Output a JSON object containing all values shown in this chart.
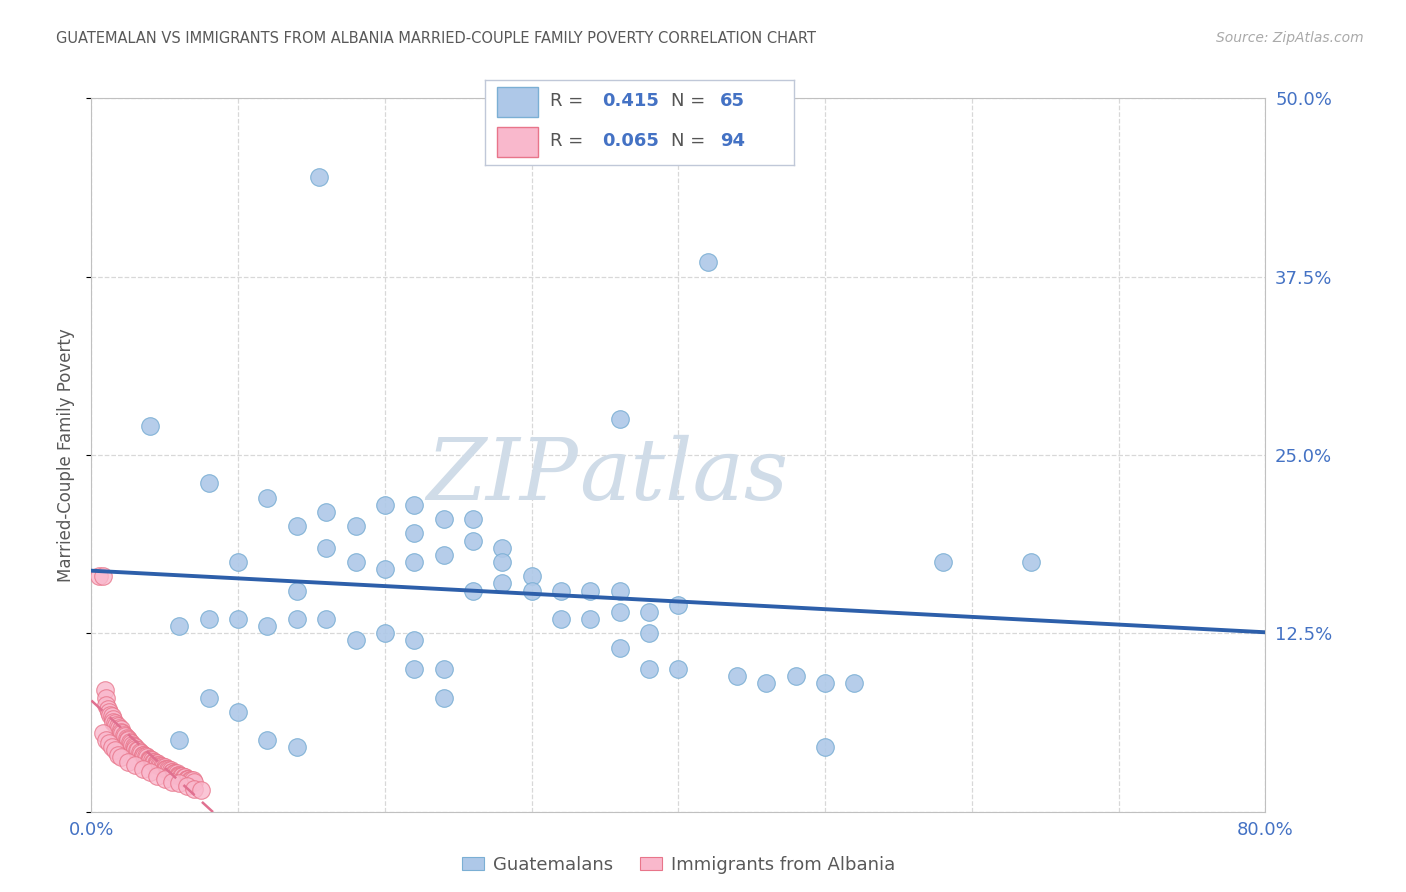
{
  "title": "GUATEMALAN VS IMMIGRANTS FROM ALBANIA MARRIED-COUPLE FAMILY POVERTY CORRELATION CHART",
  "source": "Source: ZipAtlas.com",
  "ylabel_label": "Married-Couple Family Poverty",
  "legend_blue_label": "Guatemalans",
  "legend_pink_label": "Immigrants from Albania",
  "R_blue": "0.415",
  "N_blue": "65",
  "R_pink": "0.065",
  "N_pink": "94",
  "watermark_text": "ZIPatlas",
  "title_color": "#595959",
  "source_color": "#aaaaaa",
  "axis_tick_color": "#4472c4",
  "ylabel_color": "#595959",
  "blue_scatter_face": "#aec8e8",
  "blue_scatter_edge": "#7bafd4",
  "pink_scatter_face": "#f9b8cc",
  "pink_scatter_edge": "#e8758a",
  "blue_line_color": "#2d5faa",
  "pink_line_color": "#e07090",
  "watermark_color": "#d0dce8",
  "grid_color": "#d8d8d8",
  "legend_box_color": "#e8eef8",
  "legend_border_color": "#c0c8d8",
  "xmin": 0.0,
  "xmax": 0.8,
  "ymin": 0.0,
  "ymax": 0.5,
  "xticks": [
    0.0,
    0.1,
    0.2,
    0.3,
    0.4,
    0.5,
    0.6,
    0.7,
    0.8
  ],
  "yticks": [
    0.0,
    0.125,
    0.25,
    0.375,
    0.5
  ],
  "xtick_labels": [
    "0.0%",
    "",
    "",
    "",
    "",
    "",
    "",
    "",
    "80.0%"
  ],
  "ytick_labels": [
    "",
    "12.5%",
    "25.0%",
    "37.5%",
    "50.0%"
  ],
  "blue_x": [
    0.155,
    0.42,
    0.08,
    0.1,
    0.12,
    0.14,
    0.16,
    0.18,
    0.2,
    0.18,
    0.22,
    0.14,
    0.16,
    0.2,
    0.24,
    0.22,
    0.26,
    0.22,
    0.24,
    0.26,
    0.28,
    0.3,
    0.28,
    0.32,
    0.3,
    0.26,
    0.28,
    0.34,
    0.36,
    0.38,
    0.4,
    0.36,
    0.32,
    0.34,
    0.38,
    0.06,
    0.08,
    0.1,
    0.12,
    0.14,
    0.16,
    0.18,
    0.2,
    0.22,
    0.24,
    0.36,
    0.38,
    0.4,
    0.44,
    0.46,
    0.48,
    0.5,
    0.52,
    0.58,
    0.64,
    0.22,
    0.24,
    0.08,
    0.1,
    0.12,
    0.14,
    0.06,
    0.5,
    0.36,
    0.04
  ],
  "blue_y": [
    0.445,
    0.385,
    0.23,
    0.175,
    0.22,
    0.2,
    0.21,
    0.2,
    0.215,
    0.175,
    0.215,
    0.155,
    0.185,
    0.17,
    0.205,
    0.175,
    0.205,
    0.195,
    0.18,
    0.19,
    0.185,
    0.165,
    0.175,
    0.155,
    0.155,
    0.155,
    0.16,
    0.155,
    0.155,
    0.125,
    0.145,
    0.14,
    0.135,
    0.135,
    0.14,
    0.13,
    0.135,
    0.135,
    0.13,
    0.135,
    0.135,
    0.12,
    0.125,
    0.12,
    0.1,
    0.115,
    0.1,
    0.1,
    0.095,
    0.09,
    0.095,
    0.09,
    0.09,
    0.175,
    0.175,
    0.1,
    0.08,
    0.08,
    0.07,
    0.05,
    0.045,
    0.05,
    0.045,
    0.275,
    0.27
  ],
  "pink_x": [
    0.005,
    0.008,
    0.009,
    0.01,
    0.01,
    0.011,
    0.012,
    0.013,
    0.014,
    0.015,
    0.015,
    0.016,
    0.017,
    0.018,
    0.019,
    0.02,
    0.02,
    0.021,
    0.022,
    0.023,
    0.024,
    0.025,
    0.025,
    0.026,
    0.027,
    0.028,
    0.029,
    0.03,
    0.03,
    0.031,
    0.032,
    0.033,
    0.034,
    0.035,
    0.035,
    0.036,
    0.037,
    0.038,
    0.039,
    0.04,
    0.04,
    0.041,
    0.042,
    0.043,
    0.044,
    0.045,
    0.045,
    0.046,
    0.047,
    0.048,
    0.049,
    0.05,
    0.05,
    0.051,
    0.052,
    0.053,
    0.054,
    0.055,
    0.055,
    0.056,
    0.057,
    0.058,
    0.059,
    0.06,
    0.06,
    0.061,
    0.062,
    0.063,
    0.064,
    0.065,
    0.065,
    0.066,
    0.067,
    0.068,
    0.069,
    0.07,
    0.008,
    0.01,
    0.012,
    0.014,
    0.016,
    0.018,
    0.02,
    0.025,
    0.03,
    0.035,
    0.04,
    0.045,
    0.05,
    0.055,
    0.06,
    0.065,
    0.07,
    0.075
  ],
  "pink_y": [
    0.165,
    0.165,
    0.085,
    0.08,
    0.075,
    0.072,
    0.07,
    0.068,
    0.067,
    0.065,
    0.063,
    0.062,
    0.061,
    0.06,
    0.059,
    0.058,
    0.056,
    0.055,
    0.054,
    0.053,
    0.052,
    0.051,
    0.05,
    0.049,
    0.048,
    0.047,
    0.046,
    0.045,
    0.044,
    0.043,
    0.043,
    0.042,
    0.041,
    0.04,
    0.04,
    0.039,
    0.039,
    0.038,
    0.037,
    0.037,
    0.036,
    0.036,
    0.035,
    0.035,
    0.034,
    0.034,
    0.033,
    0.033,
    0.032,
    0.032,
    0.031,
    0.031,
    0.03,
    0.03,
    0.03,
    0.029,
    0.029,
    0.028,
    0.028,
    0.027,
    0.027,
    0.027,
    0.026,
    0.026,
    0.025,
    0.025,
    0.025,
    0.024,
    0.024,
    0.023,
    0.023,
    0.023,
    0.022,
    0.022,
    0.022,
    0.021,
    0.055,
    0.05,
    0.048,
    0.045,
    0.043,
    0.04,
    0.038,
    0.035,
    0.033,
    0.03,
    0.028,
    0.025,
    0.023,
    0.021,
    0.02,
    0.018,
    0.016,
    0.015
  ]
}
